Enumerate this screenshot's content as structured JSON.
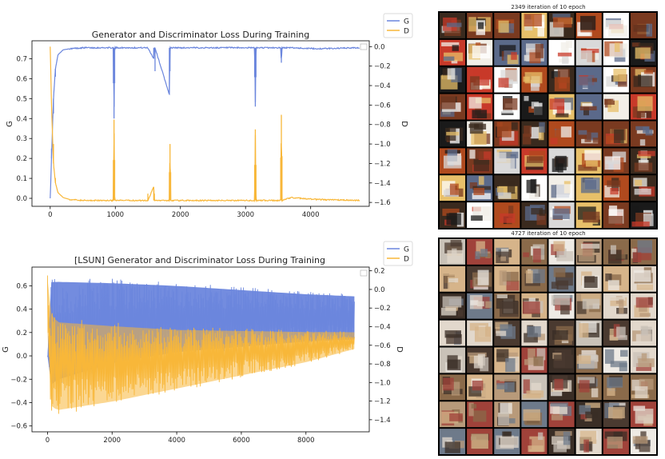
{
  "colors": {
    "g": "#6b86dd",
    "d": "#f8b739",
    "axis": "#000000"
  },
  "chart_data": [
    {
      "type": "line",
      "title": "Generator and Discriminator Loss During Training",
      "xlabel": "",
      "ylabel_left": "G",
      "ylabel_right": "D",
      "xlim": [
        -280,
        4900
      ],
      "ylim_left": [
        -0.04,
        0.79
      ],
      "ylim_right": [
        -1.64,
        0.06
      ],
      "xticks": [
        0,
        1000,
        2000,
        3000,
        4000
      ],
      "xtick_labels": [
        "0",
        "1000",
        "2000",
        "3000",
        "4000"
      ],
      "yticks_left": [
        0.0,
        0.1,
        0.2,
        0.3,
        0.4,
        0.5,
        0.6,
        0.7
      ],
      "ytick_labels_left": [
        "0.0",
        "0.1",
        "0.2",
        "0.3",
        "0.4",
        "0.5",
        "0.6",
        "0.7"
      ],
      "yticks_right": [
        0.0,
        -0.2,
        -0.4,
        -0.6,
        -0.8,
        -1.0,
        -1.2,
        -1.4,
        -1.6
      ],
      "ytick_labels_right": [
        "0.0",
        "−0.2",
        "−0.4",
        "−0.6",
        "−0.8",
        "−1.0",
        "−1.2",
        "−1.4",
        "−1.6"
      ],
      "legend": {
        "placement": "outside-top-right",
        "entries": [
          "G",
          "D"
        ]
      },
      "grid": false,
      "series": [
        {
          "name": "G",
          "axis": "left",
          "x": [
            0,
            20,
            50,
            80,
            120,
            200,
            300,
            500,
            970,
            980,
            990,
            1000,
            1010,
            1500,
            1590,
            1600,
            1610,
            1830,
            1840,
            1850,
            2500,
            3140,
            3150,
            3160,
            3540,
            3550,
            3560,
            3700,
            4100,
            4750
          ],
          "y": [
            0.0,
            0.2,
            0.5,
            0.65,
            0.72,
            0.745,
            0.75,
            0.755,
            0.755,
            0.4,
            0.755,
            0.755,
            0.755,
            0.755,
            0.7,
            0.755,
            0.755,
            0.52,
            0.755,
            0.755,
            0.755,
            0.755,
            0.46,
            0.755,
            0.755,
            0.68,
            0.755,
            0.755,
            0.75,
            0.755
          ]
        },
        {
          "name": "D",
          "axis": "right",
          "x": [
            0,
            20,
            50,
            80,
            120,
            200,
            300,
            500,
            970,
            980,
            990,
            1000,
            1500,
            1590,
            1600,
            1610,
            1830,
            1840,
            1850,
            2500,
            3140,
            3150,
            3160,
            3540,
            3550,
            3560,
            3700,
            4100,
            4750
          ],
          "y": [
            0.0,
            -0.6,
            -1.2,
            -1.4,
            -1.5,
            -1.55,
            -1.57,
            -1.58,
            -1.58,
            -0.75,
            -1.58,
            -1.58,
            -1.58,
            -1.44,
            -1.58,
            -1.58,
            -1.58,
            -1.0,
            -1.58,
            -1.58,
            -1.58,
            -0.85,
            -1.58,
            -1.58,
            -0.7,
            -1.58,
            -1.55,
            -1.57,
            -1.58
          ]
        }
      ]
    },
    {
      "type": "line",
      "title": "[LSUN] Generator and Discriminator Loss During Training",
      "xlabel": "",
      "ylabel_left": "G",
      "ylabel_right": "D",
      "xlim": [
        -480,
        9960
      ],
      "ylim_left": [
        -0.65,
        0.76
      ],
      "ylim_right": [
        -1.53,
        0.24
      ],
      "xticks": [
        0,
        2000,
        4000,
        6000,
        8000
      ],
      "xtick_labels": [
        "0",
        "2000",
        "4000",
        "6000",
        "8000"
      ],
      "yticks_left": [
        -0.6,
        -0.4,
        -0.2,
        0.0,
        0.2,
        0.4,
        0.6
      ],
      "ytick_labels_left": [
        "−0.6",
        "−0.4",
        "−0.2",
        "0.0",
        "0.2",
        "0.4",
        "0.6"
      ],
      "yticks_right": [
        0.2,
        0.0,
        -0.2,
        -0.4,
        -0.6,
        -0.8,
        -1.0,
        -1.2,
        -1.4
      ],
      "ytick_labels_right": [
        "0.2",
        "0.0",
        "−0.2",
        "−0.4",
        "−0.6",
        "−0.8",
        "−1.0",
        "−1.2",
        "−1.4"
      ],
      "legend": {
        "placement": "outside-top-right",
        "entries": [
          "G",
          "D"
        ]
      },
      "grid": false,
      "series": [
        {
          "name": "G",
          "axis": "left",
          "x": [
            0,
            100,
            300,
            2000,
            4000,
            6000,
            8000,
            9500
          ],
          "y_upper": [
            0.0,
            0.68,
            0.68,
            0.66,
            0.63,
            0.59,
            0.55,
            0.53
          ],
          "y_lower": [
            0.0,
            -0.3,
            -0.25,
            -0.1,
            0.0,
            0.05,
            0.1,
            0.12
          ]
        },
        {
          "name": "D",
          "axis": "right",
          "x": [
            0,
            100,
            300,
            2000,
            4000,
            6000,
            8000,
            9500
          ],
          "y_upper": [
            0.15,
            -0.2,
            -0.3,
            -0.35,
            -0.4,
            -0.42,
            -0.44,
            -0.45
          ],
          "y_lower": [
            -0.5,
            -1.3,
            -1.35,
            -1.25,
            -1.1,
            -0.95,
            -0.8,
            -0.65
          ]
        }
      ]
    }
  ],
  "images": [
    {
      "title": "2349 iteration of 10 epoch",
      "rows": 8,
      "cols": 8,
      "palette": [
        "#3a2a1e",
        "#f2efe8",
        "#b04a1e",
        "#e8c06a",
        "#1a1a1a",
        "#d9d9d9",
        "#7a3a20",
        "#c83a2a",
        "#ffffff",
        "#5b6a8a"
      ]
    },
    {
      "title": "4727 iteration of 10 epoch",
      "rows": 8,
      "cols": 8,
      "palette": [
        "#c9c2b8",
        "#8a6a4a",
        "#b89a7a",
        "#3a2e26",
        "#e2d8cc",
        "#a0423a",
        "#6e7a8a",
        "#d6b48a",
        "#4a3a30",
        "#eeeae4"
      ]
    }
  ]
}
